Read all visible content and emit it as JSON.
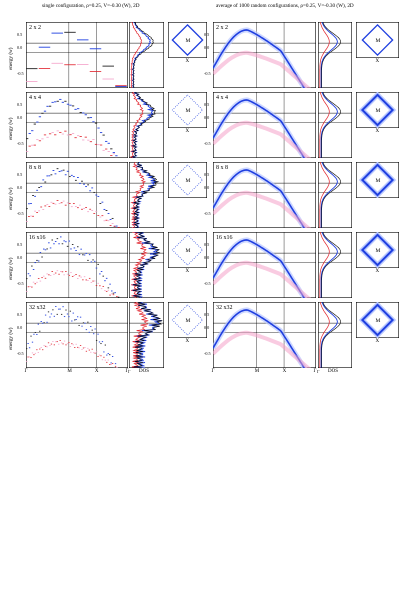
{
  "titles": {
    "left": "single configuration, ρ=0.25, V=-0.30 (W), 2D",
    "right": "average of 1000 random configurations, ρ=0.25, V=-0.30 (W), 2D"
  },
  "ylabel": "energy (w)",
  "ytick_labels": [
    "0.5",
    "0.0",
    "-0.5"
  ],
  "xtick_labels": [
    "Γ",
    "M",
    "X",
    "Γ"
  ],
  "dos_label": "DOS",
  "bz_labels": {
    "center": "M",
    "bottom": "X"
  },
  "rows": [
    {
      "label": "2 x 2"
    },
    {
      "label": "4 x 4"
    },
    {
      "label": "8 x 8"
    },
    {
      "label": "16 x16"
    },
    {
      "label": "32 x32"
    }
  ],
  "colors": {
    "blue": "#1f3fe0",
    "red": "#e0202a",
    "pink": "#f4a0c8",
    "lightblue": "#b9c8ff",
    "black": "#000000"
  }
}
